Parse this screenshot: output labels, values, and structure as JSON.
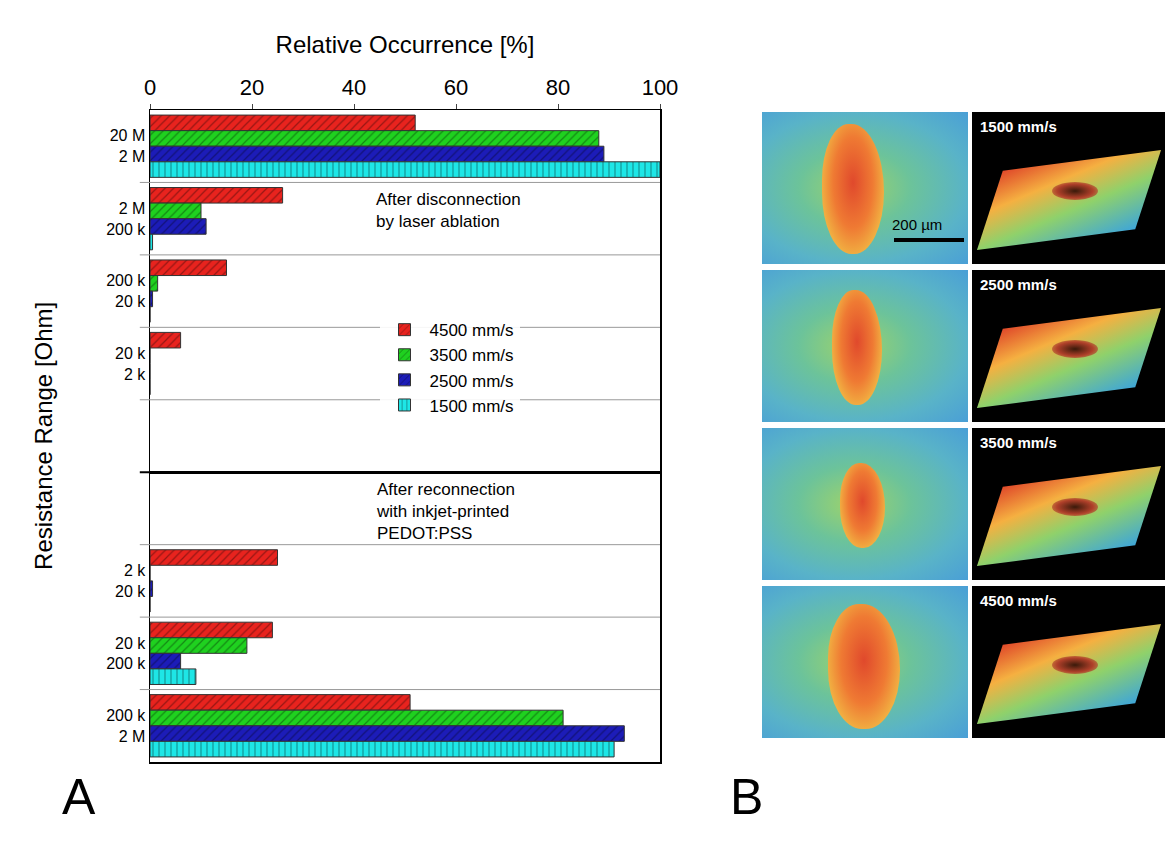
{
  "chart_data": [
    {
      "type": "bar",
      "orientation": "horizontal",
      "x_label": "Relative Occurrence [%]",
      "y_label": "Resistance Range [Ohm]",
      "annotation": "After disconnection by laser ablation",
      "categories": [
        [
          "20 M",
          "2 M"
        ],
        [
          "2 M",
          "200 k"
        ],
        [
          "200 k",
          "20 k"
        ],
        [
          "20 k",
          "2 k"
        ],
        null
      ],
      "series": [
        {
          "name": "4500 mm/s",
          "color": "#e8231e",
          "marker": "diagonal",
          "values": [
            52,
            26,
            15,
            6,
            null
          ]
        },
        {
          "name": "3500 mm/s",
          "color": "#1fd11f",
          "marker": "diagonal",
          "values": [
            88,
            10,
            1.5,
            0,
            null
          ]
        },
        {
          "name": "2500 mm/s",
          "color": "#1c1cb8",
          "marker": "diagonal",
          "values": [
            89,
            11,
            0.5,
            0,
            null
          ]
        },
        {
          "name": "1500 mm/s",
          "color": "#1ee6e6",
          "marker": "vertical",
          "values": [
            100,
            0.5,
            0,
            0,
            null
          ]
        }
      ],
      "xlim": [
        0,
        100
      ],
      "xticks": [
        0,
        20,
        40,
        60,
        80,
        100
      ],
      "legend": "right",
      "grid": false
    },
    {
      "type": "bar",
      "orientation": "horizontal",
      "annotation": "After reconnection with inkjet-printed PEDOT:PSS",
      "categories": [
        null,
        [
          "2 k",
          "20 k"
        ],
        [
          "20 k",
          "200 k"
        ],
        [
          "200 k",
          "2 M"
        ]
      ],
      "series": [
        {
          "name": "4500 mm/s",
          "color": "#e8231e",
          "marker": "diagonal",
          "values": [
            null,
            25,
            24,
            51
          ]
        },
        {
          "name": "3500 mm/s",
          "color": "#1fd11f",
          "marker": "diagonal",
          "values": [
            null,
            0,
            19,
            81
          ]
        },
        {
          "name": "2500 mm/s",
          "color": "#1c1cb8",
          "marker": "diagonal",
          "values": [
            null,
            0.5,
            6,
            93
          ]
        },
        {
          "name": "1500 mm/s",
          "color": "#1ee6e6",
          "marker": "vertical",
          "values": [
            null,
            0,
            9,
            91
          ]
        }
      ],
      "xlim": [
        0,
        100
      ],
      "xticks": [
        0,
        20,
        40,
        60,
        80,
        100
      ],
      "tick_labels": "y",
      "grid": false
    }
  ],
  "panel_labels": {
    "chart": "A",
    "images": "B"
  },
  "images": {
    "scale_bar": "200 µm",
    "speeds": [
      "1500 mm/s",
      "2500 mm/s",
      "3500 mm/s",
      "4500 mm/s"
    ]
  }
}
